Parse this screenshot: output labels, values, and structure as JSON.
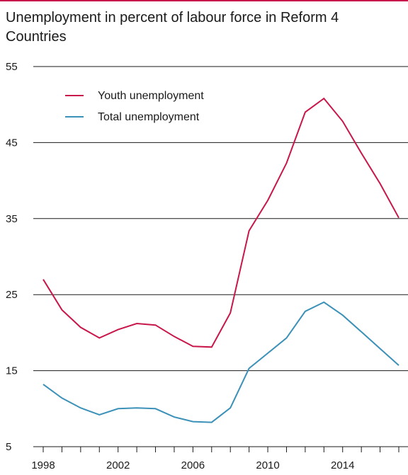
{
  "chart_data": {
    "type": "line",
    "title": "Unemployment in percent of labour force in Reform 4 Countries",
    "xlabel": "",
    "ylabel": "",
    "xlim": [
      1997.3,
      2018
    ],
    "ylim": [
      5,
      55
    ],
    "yticks": [
      5,
      15,
      25,
      35,
      45,
      55
    ],
    "xtick_labels": [
      1998,
      2002,
      2006,
      2010,
      2014
    ],
    "x": [
      1998,
      1999,
      2000,
      2001,
      2002,
      2003,
      2004,
      2005,
      2006,
      2007,
      2008,
      2009,
      2010,
      2011,
      2012,
      2013,
      2014,
      2015,
      2016,
      2017
    ],
    "series": [
      {
        "name": "Youth unemployment",
        "color": "#c8174a",
        "values": [
          27.0,
          23.0,
          20.7,
          19.3,
          20.4,
          21.2,
          21.0,
          19.5,
          18.2,
          18.1,
          22.6,
          33.4,
          37.4,
          42.3,
          49.0,
          50.8,
          47.8,
          43.6,
          39.6,
          35.1
        ]
      },
      {
        "name": "Total unemployment",
        "color": "#3c91b8",
        "values": [
          13.2,
          11.4,
          10.1,
          9.2,
          10.0,
          10.1,
          10.0,
          8.9,
          8.3,
          8.2,
          10.1,
          15.3,
          17.3,
          19.3,
          22.8,
          24.0,
          22.3,
          20.1,
          17.9,
          15.7
        ]
      }
    ],
    "grid": true,
    "legend_position": "top-left"
  }
}
